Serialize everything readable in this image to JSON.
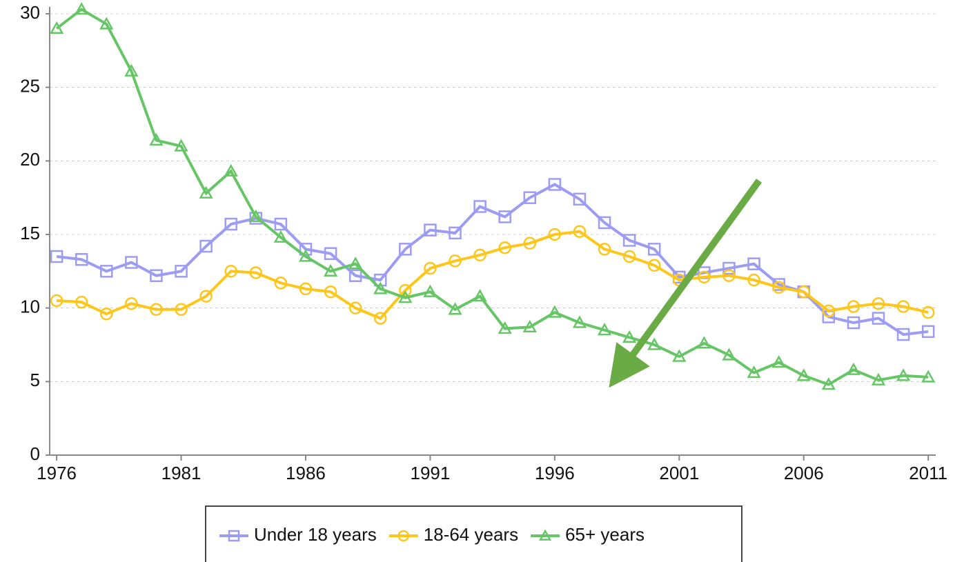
{
  "chart_data": {
    "type": "line",
    "x": [
      1976,
      1977,
      1978,
      1979,
      1980,
      1981,
      1982,
      1983,
      1984,
      1985,
      1986,
      1987,
      1988,
      1989,
      1990,
      1991,
      1992,
      1993,
      1994,
      1995,
      1996,
      1997,
      1998,
      1999,
      2000,
      2001,
      2002,
      2003,
      2004,
      2005,
      2006,
      2007,
      2008,
      2009,
      2010,
      2011
    ],
    "series": [
      {
        "name": "Under 18 years",
        "color": "#9c9cf2",
        "marker": "square",
        "values": [
          13.5,
          13.3,
          12.5,
          13.1,
          12.2,
          12.5,
          14.2,
          15.7,
          16.1,
          15.7,
          14.0,
          13.7,
          12.2,
          11.9,
          14.0,
          15.3,
          15.1,
          16.9,
          16.2,
          17.5,
          18.4,
          17.4,
          15.8,
          14.6,
          14.0,
          12.1,
          12.4,
          12.7,
          13.0,
          11.6,
          11.1,
          9.4,
          9.0,
          9.3,
          8.2,
          8.4
        ]
      },
      {
        "name": "18-64 years",
        "color": "#ffc61a",
        "marker": "circle",
        "values": [
          10.5,
          10.4,
          9.6,
          10.3,
          9.9,
          9.9,
          10.8,
          12.5,
          12.4,
          11.7,
          11.3,
          11.1,
          10.0,
          9.3,
          11.2,
          12.7,
          13.2,
          13.6,
          14.1,
          14.4,
          15.0,
          15.2,
          14.0,
          13.5,
          12.9,
          11.9,
          12.1,
          12.2,
          11.9,
          11.4,
          11.1,
          9.8,
          10.1,
          10.3,
          10.1,
          9.7
        ]
      },
      {
        "name": "65+ years",
        "color": "#66c666",
        "marker": "triangle",
        "values": [
          29.0,
          30.3,
          29.3,
          26.1,
          21.4,
          21.0,
          17.8,
          19.3,
          16.2,
          14.8,
          13.5,
          12.5,
          13.0,
          11.3,
          10.7,
          11.1,
          9.9,
          10.8,
          8.6,
          8.7,
          9.7,
          9.0,
          8.5,
          8.0,
          7.5,
          6.7,
          7.6,
          6.8,
          5.6,
          6.3,
          5.4,
          4.8,
          5.8,
          5.1,
          5.4,
          5.3
        ]
      }
    ],
    "xlim": [
      1975.72,
      2011.3
    ],
    "xticks": [
      1976,
      1981,
      1986,
      1991,
      1996,
      2001,
      2006,
      2011
    ],
    "ylim": [
      0,
      30
    ],
    "yticks": [
      0,
      5,
      10,
      15,
      20,
      25,
      30
    ],
    "grid": true,
    "legend": "bottom"
  }
}
